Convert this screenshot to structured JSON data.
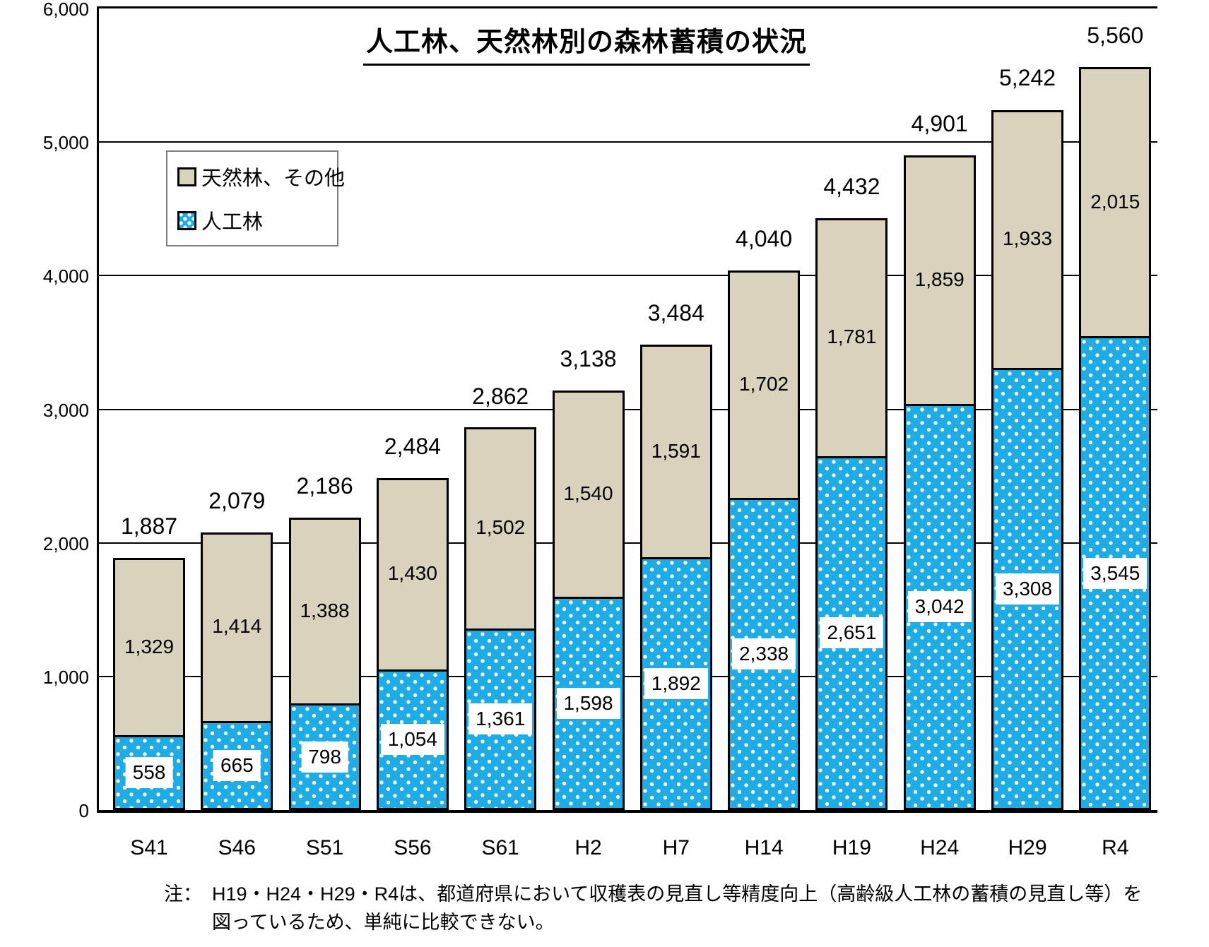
{
  "title": "人工林、天然林別の森林蓄積の状況",
  "legend": {
    "natural": "天然林、その他",
    "planted": "人工林"
  },
  "note": {
    "prefix": "注：",
    "line1": "H19・H24・H29・R4は、都道府県において収穫表の見直し等精度向上（高齢級人工林の蓄積の見直し等）を",
    "line2": "図っているため、単純に比較できない。"
  },
  "y_axis": {
    "tick_labels": [
      "0",
      "1,000",
      "2,000",
      "3,000",
      "4,000",
      "5,000",
      "6,000"
    ]
  },
  "colors": {
    "planted": "#1FACE4",
    "natural": "#D9D3BD",
    "grid": "#000000",
    "label_box": "#FFFFFF",
    "text": "#000000"
  },
  "chart_data": {
    "type": "bar",
    "stacked": true,
    "title": "人工林、天然林別の森林蓄積の状況",
    "categories": [
      "S41",
      "S46",
      "S51",
      "S56",
      "S61",
      "H2",
      "H7",
      "H14",
      "H19",
      "H24",
      "H29",
      "R4"
    ],
    "series": [
      {
        "name": "人工林",
        "color": "#1FACE4",
        "pattern": "white-dots",
        "values": [
          558,
          665,
          798,
          1054,
          1361,
          1598,
          1892,
          2338,
          2651,
          3042,
          3308,
          3545
        ]
      },
      {
        "name": "天然林、その他",
        "color": "#D9D3BD",
        "pattern": "solid",
        "values": [
          1329,
          1414,
          1388,
          1430,
          1502,
          1540,
          1591,
          1702,
          1781,
          1859,
          1933,
          2015
        ]
      }
    ],
    "totals": [
      1887,
      2079,
      2186,
      2484,
      2862,
      3138,
      3484,
      4040,
      4432,
      4901,
      5242,
      5560
    ],
    "ylim": [
      0,
      6000
    ],
    "ytick_interval": 1000,
    "grid": "horizontal",
    "legend_position": "upper-left"
  }
}
